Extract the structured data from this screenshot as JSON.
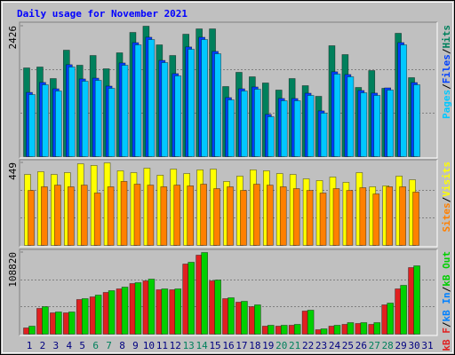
{
  "chart_data": [
    {
      "type": "bar",
      "title": "Daily usage for November 2021",
      "ylim": [
        0,
        2426
      ],
      "yticks": [
        2426
      ],
      "gridlines": [
        808.67,
        1617.33
      ],
      "legend_separator": "/",
      "legend_reversed": true,
      "series": [
        {
          "name": "Hits",
          "color": "#00805c",
          "values": [
            1650,
            1667,
            1452,
            1980,
            1700,
            1881,
            1634,
            1931,
            2310,
            2426,
            2079,
            1881,
            2277,
            2376,
            2376,
            1304,
            1568,
            1485,
            1370,
            1238,
            1452,
            1320,
            1122,
            2063,
            1898,
            1287,
            1601,
            1271,
            2294,
            1469,
            null
          ]
        },
        {
          "name": "Files",
          "color": "#0040ff",
          "values": [
            1195,
            1380,
            1262,
            1710,
            1445,
            1460,
            1312,
            1742,
            2120,
            2221,
            1790,
            1544,
            2040,
            2220,
            1957,
            1098,
            1262,
            1296,
            785,
            1082,
            1081,
            1180,
            851,
            1578,
            1527,
            1230,
            1182,
            1279,
            2121,
            1378,
            null
          ]
        },
        {
          "name": "Pages",
          "color": "#00c8ff",
          "values": [
            1155,
            1337,
            1221,
            1667,
            1403,
            1419,
            1271,
            1700,
            2079,
            2178,
            1749,
            1502,
            1997,
            2178,
            1914,
            1056,
            1221,
            1254,
            743,
            1040,
            1040,
            1139,
            809,
            1535,
            1485,
            1188,
            1139,
            1238,
            2079,
            1337,
            null
          ]
        }
      ]
    },
    {
      "type": "bar",
      "ylim": [
        0,
        449
      ],
      "yticks": [
        449
      ],
      "gridlines": [
        149.67,
        299.33
      ],
      "legend_separator": "/",
      "legend_reversed": true,
      "series": [
        {
          "name": "Visits",
          "color": "#ffff00",
          "values": [
            386,
            401,
            386,
            396,
            444,
            435,
            449,
            406,
            396,
            420,
            382,
            415,
            391,
            411,
            415,
            348,
            377,
            411,
            406,
            391,
            386,
            362,
            353,
            372,
            343,
            396,
            319,
            324,
            377,
            357,
            null
          ]
        },
        {
          "name": "Sites",
          "color": "#ff8000",
          "values": [
            299,
            319,
            328,
            319,
            328,
            285,
            319,
            348,
            333,
            328,
            319,
            328,
            324,
            333,
            309,
            319,
            299,
            333,
            328,
            319,
            309,
            299,
            285,
            309,
            299,
            314,
            280,
            319,
            319,
            290,
            null
          ]
        }
      ]
    },
    {
      "type": "bar",
      "ylim": [
        0,
        108820
      ],
      "yticks": [
        108820
      ],
      "gridlines": [
        36273.33,
        72546.67
      ],
      "legend_separator": "/",
      "legend_reversed": false,
      "categories": [
        "1",
        "2",
        "3",
        "4",
        "5",
        "6",
        "7",
        "8",
        "9",
        "10",
        "11",
        "12",
        "13",
        "14",
        "15",
        "16",
        "17",
        "18",
        "19",
        "20",
        "21",
        "22",
        "23",
        "24",
        "25",
        "26",
        "27",
        "28",
        "29",
        "30",
        "31"
      ],
      "category_colors": [
        "#000080",
        "#000080",
        "#000080",
        "#000080",
        "#000080",
        "#00805c",
        "#00805c",
        "#000080",
        "#000080",
        "#000080",
        "#000080",
        "#000080",
        "#00805c",
        "#00805c",
        "#000080",
        "#000080",
        "#000080",
        "#000080",
        "#000080",
        "#00805c",
        "#00805c",
        "#000080",
        "#000080",
        "#000080",
        "#000080",
        "#000080",
        "#00805c",
        "#00805c",
        "#000080",
        "#000080",
        "#000080"
      ],
      "series": [
        {
          "name": "kB F",
          "color": "#e02020",
          "values": [
            8281,
            34307,
            28392,
            28392,
            46137,
            49686,
            55601,
            60333,
            67431,
            70980,
            59150,
            59150,
            93457,
            105287,
            70980,
            47320,
            42588,
            36673,
            10647,
            10647,
            11830,
            30758,
            5915,
            10647,
            13013,
            14196,
            13013,
            39039,
            60333,
            88725,
            null
          ]
        },
        {
          "name": "kB In",
          "color": "#0080ff",
          "values": [
            0,
            0,
            0,
            0,
            0,
            0,
            0,
            0,
            0,
            0,
            0,
            0,
            0,
            0,
            0,
            0,
            0,
            0,
            0,
            0,
            0,
            0,
            0,
            0,
            0,
            0,
            0,
            0,
            0,
            0,
            null
          ]
        },
        {
          "name": "kB Out",
          "color": "#00d000",
          "values": [
            10647,
            36673,
            29575,
            29575,
            47320,
            52052,
            57967,
            62699,
            68614,
            73346,
            60333,
            60333,
            95823,
            108820,
            72163,
            48503,
            43771,
            39039,
            11830,
            11830,
            13013,
            31941,
            7098,
            11830,
            15379,
            15379,
            15379,
            41405,
            65065,
            91091,
            null
          ]
        }
      ]
    }
  ]
}
